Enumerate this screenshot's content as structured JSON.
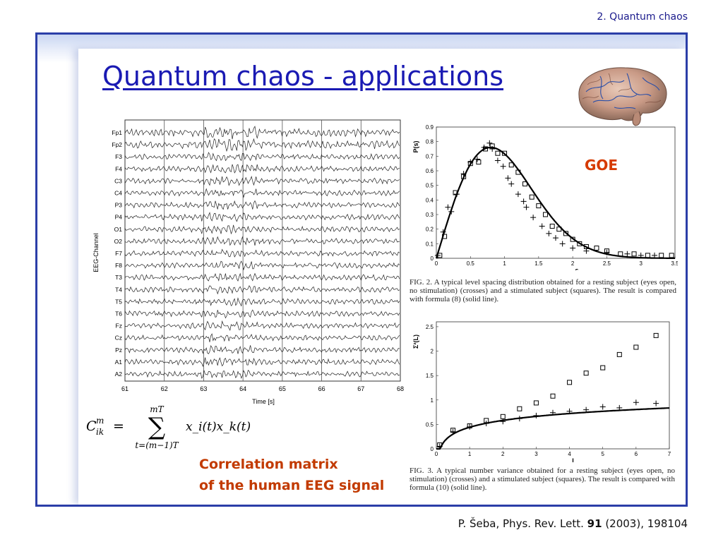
{
  "header": {
    "section": "2. Quantum chaos"
  },
  "slide": {
    "title": "Quantum chaos - applications",
    "goe_label": "GOE",
    "correlation_line1": "Correlation matrix",
    "correlation_line2": "of the human EEG signal"
  },
  "formula": {
    "lhs": "C",
    "lhs_sup": "m",
    "lhs_sub": "ik",
    "equals": "=",
    "sum_upper": "mT",
    "sum_symbol": "∑",
    "sum_lower": "t=(m−1)T",
    "rhs": "x_i(t)x_k(t)"
  },
  "citation": {
    "authors": "P. Šeba, Phys. Rev. Lett.",
    "volume": "91",
    "rest": "(2003), 198104"
  },
  "colors": {
    "frame": "#2b3ea8",
    "title": "#1a1ab3",
    "accent": "#c23a00"
  },
  "eeg": {
    "ylabel": "EEG-Channel",
    "xlabel": "Time [s]",
    "channels": [
      "Fp1",
      "Fp2",
      "F3",
      "F4",
      "C3",
      "C4",
      "P3",
      "P4",
      "O1",
      "O2",
      "F7",
      "F8",
      "T3",
      "T4",
      "T5",
      "T6",
      "Fz",
      "Cz",
      "Pz",
      "A1",
      "A2"
    ],
    "x_ticks": [
      "61",
      "62",
      "63",
      "64",
      "65",
      "66",
      "67",
      "68"
    ]
  },
  "chart_data": [
    {
      "type": "scatter",
      "xlabel": "s",
      "ylabel": "P(s)",
      "xlim": [
        0,
        3.5
      ],
      "ylim": [
        0,
        0.9
      ],
      "x_ticks": [
        "0",
        "0.5",
        "1",
        "1.5",
        "2",
        "2.5",
        "3",
        "3.5"
      ],
      "y_ticks": [
        "0",
        "0.1",
        "0.2",
        "0.3",
        "0.4",
        "0.5",
        "0.6",
        "0.7",
        "0.8",
        "0.9"
      ],
      "series": [
        {
          "marker": "cross",
          "x": [
            0.02,
            0.1,
            0.17,
            0.22,
            0.3,
            0.4,
            0.5,
            0.6,
            0.7,
            0.78,
            0.82,
            0.9,
            0.98,
            1.05,
            1.1,
            1.2,
            1.28,
            1.32,
            1.42,
            1.55,
            1.65,
            1.75,
            1.85,
            2.0,
            2.2,
            2.5,
            2.8,
            3.0,
            3.2
          ],
          "y": [
            0.02,
            0.18,
            0.35,
            0.32,
            0.44,
            0.58,
            0.66,
            0.68,
            0.76,
            0.79,
            0.75,
            0.67,
            0.63,
            0.55,
            0.51,
            0.44,
            0.39,
            0.35,
            0.28,
            0.22,
            0.17,
            0.14,
            0.1,
            0.07,
            0.05,
            0.04,
            0.03,
            0.02,
            0.02
          ]
        },
        {
          "marker": "square",
          "x": [
            0.05,
            0.12,
            0.28,
            0.4,
            0.5,
            0.62,
            0.72,
            0.82,
            0.9,
            1.0,
            1.1,
            1.2,
            1.3,
            1.4,
            1.5,
            1.6,
            1.7,
            1.8,
            1.9,
            2.0,
            2.1,
            2.2,
            2.35,
            2.5,
            2.7,
            2.9,
            3.1,
            3.3,
            3.45
          ],
          "y": [
            0.02,
            0.15,
            0.45,
            0.56,
            0.65,
            0.66,
            0.75,
            0.77,
            0.72,
            0.72,
            0.64,
            0.59,
            0.51,
            0.42,
            0.36,
            0.3,
            0.22,
            0.2,
            0.17,
            0.13,
            0.1,
            0.08,
            0.07,
            0.05,
            0.03,
            0.03,
            0.02,
            0.02,
            0.02
          ]
        },
        {
          "marker": "line",
          "formula": "8",
          "x": [],
          "y": []
        }
      ]
    },
    {
      "type": "scatter",
      "xlabel": "L",
      "ylabel": "Σ²(L)",
      "xlim": [
        0,
        7
      ],
      "ylim": [
        0,
        2.6
      ],
      "x_ticks": [
        "0",
        "1",
        "2",
        "3",
        "4",
        "5",
        "6",
        "7"
      ],
      "y_ticks": [
        "0",
        "0.5",
        "1",
        "1.5",
        "2",
        "2.5"
      ],
      "series": [
        {
          "marker": "cross",
          "x": [
            0.1,
            0.5,
            1.0,
            1.5,
            2.0,
            2.5,
            3.0,
            3.5,
            4.0,
            4.5,
            5.0,
            5.5,
            6.0,
            6.6
          ],
          "y": [
            0.05,
            0.35,
            0.45,
            0.52,
            0.56,
            0.62,
            0.68,
            0.74,
            0.77,
            0.8,
            0.86,
            0.84,
            0.95,
            0.93
          ]
        },
        {
          "marker": "square",
          "x": [
            0.1,
            0.5,
            1.0,
            1.5,
            2.0,
            2.5,
            3.0,
            3.5,
            4.0,
            4.5,
            5.0,
            5.5,
            6.0,
            6.6
          ],
          "y": [
            0.08,
            0.38,
            0.47,
            0.58,
            0.66,
            0.82,
            0.94,
            1.08,
            1.36,
            1.55,
            1.66,
            1.93,
            2.08,
            2.32
          ]
        },
        {
          "marker": "line",
          "formula": "10",
          "x": [],
          "y": []
        }
      ]
    }
  ],
  "captions": {
    "fig2": "FIG. 2.  A typical level spacing distribution obtained for a resting subject (eyes open, no stimulation) (crosses) and a stimulated subject (squares). The result is compared with formula (8) (solid line).",
    "fig3": "FIG. 3.  A typical number variance obtained for a resting subject (eyes open, no stimulation) (crosses) and a stimulated subject (squares). The result is compared with formula (10) (solid line)."
  }
}
